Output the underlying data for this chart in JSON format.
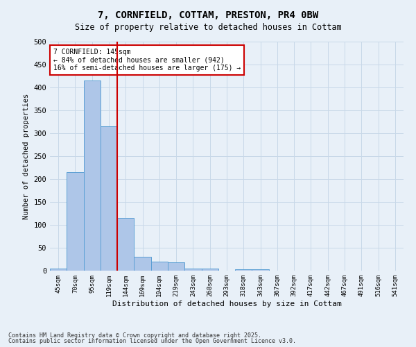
{
  "title": "7, CORNFIELD, COTTAM, PRESTON, PR4 0BW",
  "subtitle": "Size of property relative to detached houses in Cottam",
  "xlabel": "Distribution of detached houses by size in Cottam",
  "ylabel": "Number of detached properties",
  "categories": [
    "45sqm",
    "70sqm",
    "95sqm",
    "119sqm",
    "144sqm",
    "169sqm",
    "194sqm",
    "219sqm",
    "243sqm",
    "268sqm",
    "293sqm",
    "318sqm",
    "343sqm",
    "367sqm",
    "392sqm",
    "417sqm",
    "442sqm",
    "467sqm",
    "491sqm",
    "516sqm",
    "541sqm"
  ],
  "values": [
    5,
    215,
    415,
    315,
    115,
    30,
    20,
    18,
    5,
    5,
    0,
    3,
    3,
    0,
    0,
    0,
    0,
    0,
    0,
    0,
    0
  ],
  "bar_color": "#aec6e8",
  "bar_edge_color": "#5a9fd4",
  "vline_x": 3.5,
  "vline_color": "#cc0000",
  "annotation_text": "7 CORNFIELD: 145sqm\n← 84% of detached houses are smaller (942)\n16% of semi-detached houses are larger (175) →",
  "annotation_box_color": "#ffffff",
  "annotation_box_edge": "#cc0000",
  "ylim": [
    0,
    500
  ],
  "yticks": [
    0,
    50,
    100,
    150,
    200,
    250,
    300,
    350,
    400,
    450,
    500
  ],
  "grid_color": "#c8d8e8",
  "background_color": "#e8f0f8",
  "footnote1": "Contains HM Land Registry data © Crown copyright and database right 2025.",
  "footnote2": "Contains public sector information licensed under the Open Government Licence v3.0."
}
